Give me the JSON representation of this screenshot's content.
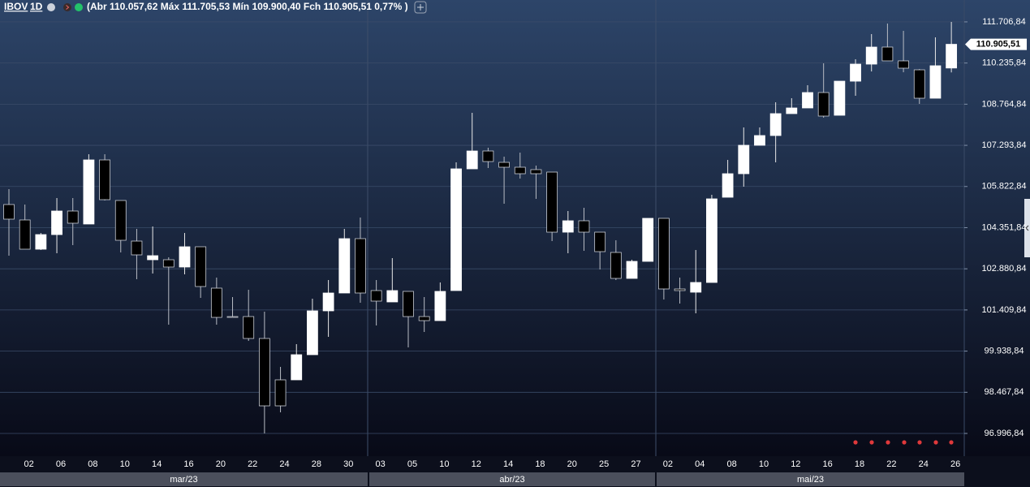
{
  "header": {
    "symbol": "IBOV",
    "interval": "1D",
    "ohlc": "(Abr 110.057,62 Máx 111.705,53 Mín 109.900,40 Fch 110.905,51 0,77% )"
  },
  "chart_data": {
    "type": "candlestick",
    "categories": [
      null,
      "02",
      null,
      "06",
      null,
      "08",
      null,
      "10",
      null,
      "14",
      null,
      "16",
      null,
      "20",
      null,
      "22",
      null,
      "24",
      null,
      "28",
      null,
      "30",
      null,
      "03",
      null,
      "05",
      null,
      "10",
      null,
      "12",
      null,
      "14",
      null,
      "18",
      null,
      "20",
      null,
      "25",
      null,
      "27",
      null,
      "02",
      null,
      "04",
      null,
      "08",
      null,
      "10",
      null,
      "12",
      null,
      "16",
      null,
      "18",
      null,
      "22",
      null,
      "24",
      null,
      "26"
    ],
    "months": [
      "mar/23",
      "abr/23",
      "mai/23"
    ],
    "open": [
      105178,
      104627,
      103582,
      104104,
      104946,
      104482,
      106773,
      105323,
      103872,
      103205,
      103205,
      102944,
      103669,
      102190,
      101174,
      101174,
      100391,
      98912,
      98912,
      99811,
      101378,
      102016,
      103959,
      102103,
      101697,
      102074,
      101174,
      101029,
      102103,
      106454,
      107092,
      106686,
      106512,
      106425,
      106338,
      104191,
      104598,
      104191,
      103466,
      102538,
      103147,
      104685,
      102161,
      102045,
      102393,
      105439,
      106280,
      107296,
      107644,
      108427,
      108630,
      109181,
      108369,
      109587,
      110197,
      110806,
      110313,
      109993,
      108978,
      110057.62
    ],
    "high": [
      105729,
      105178,
      104162,
      105410,
      105410,
      106976,
      106976,
      105323,
      104308,
      104395,
      103292,
      104162,
      103669,
      102567,
      101871,
      102132,
      101349,
      99376,
      100188,
      101813,
      102480,
      104308,
      104714,
      102480,
      103263,
      102074,
      101871,
      102393,
      106686,
      108456,
      107209,
      106889,
      107034,
      106570,
      106338,
      104946,
      105062,
      104191,
      103901,
      103205,
      104685,
      104685,
      102567,
      103553,
      105526,
      106773,
      107934,
      107934,
      108833,
      108978,
      109442,
      110226,
      109587,
      110371,
      111270,
      111647,
      111386,
      110022,
      111154,
      111705.53
    ],
    "low": [
      103350,
      103582,
      103553,
      103437,
      103727,
      104482,
      105323,
      103466,
      102509,
      102712,
      100884,
      102683,
      101842,
      100884,
      101145,
      100304,
      96997,
      97751,
      98912,
      99811,
      100449,
      102016,
      101668,
      100855,
      101697,
      100072,
      100623,
      101029,
      102103,
      106454,
      106483,
      105207,
      106106,
      105381,
      103872,
      103437,
      103524,
      102857,
      102480,
      102538,
      103147,
      101784,
      101639,
      101290,
      102393,
      105439,
      105816,
      107296,
      106686,
      108427,
      108630,
      108282,
      108369,
      109065,
      109935,
      110313,
      109906,
      108775,
      108978,
      109900.4
    ],
    "close": [
      104656,
      103582,
      104104,
      104946,
      104511,
      106773,
      105352,
      103901,
      103379,
      103350,
      102944,
      103669,
      102248,
      101145,
      101145,
      100391,
      97983,
      97983,
      99811,
      101378,
      102016,
      103959,
      102016,
      101726,
      102103,
      101174,
      101029,
      102074,
      106454,
      107092,
      106715,
      106512,
      106280,
      106280,
      104191,
      104598,
      104191,
      103495,
      102538,
      103147,
      104685,
      102161,
      102103,
      102393,
      105381,
      106280,
      107296,
      107644,
      108427,
      108630,
      109181,
      108340,
      109587,
      110197,
      110806,
      110313,
      110052,
      108978,
      110139,
      110905.51
    ],
    "up_color": "#ffffff",
    "down_color": "#000000",
    "ylim": [
      96242.6,
      112488.6
    ],
    "yticks": [
      {
        "value": 96996.84,
        "label": "96.996,84"
      },
      {
        "value": 98467.84,
        "label": "98.467,84"
      },
      {
        "value": 99938.84,
        "label": "99.938,84"
      },
      {
        "value": 101409.84,
        "label": "101.409,84"
      },
      {
        "value": 102880.84,
        "label": "102.880,84"
      },
      {
        "value": 104351.84,
        "label": "104.351,84"
      },
      {
        "value": 105822.84,
        "label": "105.822,84"
      },
      {
        "value": 107293.84,
        "label": "107.293,84"
      },
      {
        "value": 108764.84,
        "label": "108.764,84"
      },
      {
        "value": 110235.84,
        "label": "110.235,84"
      },
      {
        "value": 111706.84,
        "label": "111.706,84"
      }
    ],
    "last_price": {
      "value": 110905.51,
      "label": "110.905,51"
    },
    "grid": true
  }
}
